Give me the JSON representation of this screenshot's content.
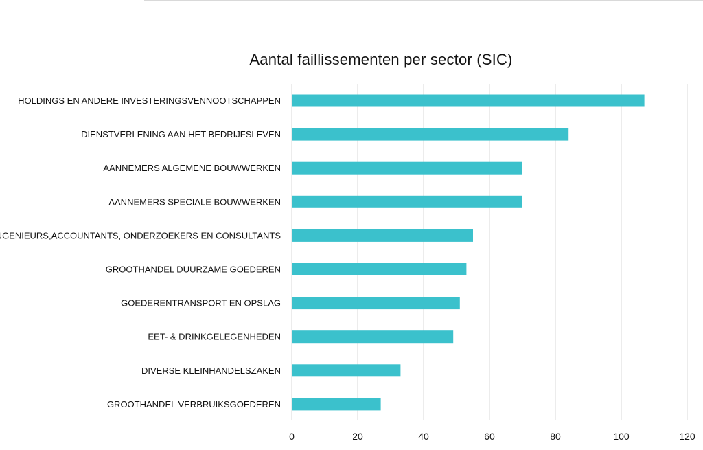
{
  "chart_data": {
    "type": "bar",
    "orientation": "horizontal",
    "title": "Aantal faillissementen per sector (SIC)",
    "xlabel": "",
    "ylabel": "",
    "categories": [
      "HOLDINGS EN ANDERE INVESTERINGSVENNOOTSCHAPPEN",
      "DIENSTVERLENING AAN HET BEDRIJFSLEVEN",
      "AANNEMERS ALGEMENE BOUWWERKEN",
      "AANNEMERS SPECIALE BOUWWERKEN",
      "INGENIEURS,ACCOUNTANTS, ONDERZOEKERS EN CONSULTANTS",
      "GROOTHANDEL DUURZAME GOEDEREN",
      "GOEDERENTRANSPORT EN OPSLAG",
      "EET- & DRINKGELEGENHEDEN",
      "DIVERSE KLEINHANDELSZAKEN",
      "GROOTHANDEL VERBRUIKSGOEDEREN"
    ],
    "values": [
      107,
      84,
      70,
      70,
      55,
      53,
      51,
      49,
      33,
      27
    ],
    "xlim": [
      0,
      120
    ],
    "x_ticks": [
      "0",
      "20",
      "40",
      "60",
      "80",
      "100",
      "120"
    ],
    "grid": true,
    "bar_color": "#3bc1cc",
    "grid_color": "#d9d9d9"
  }
}
